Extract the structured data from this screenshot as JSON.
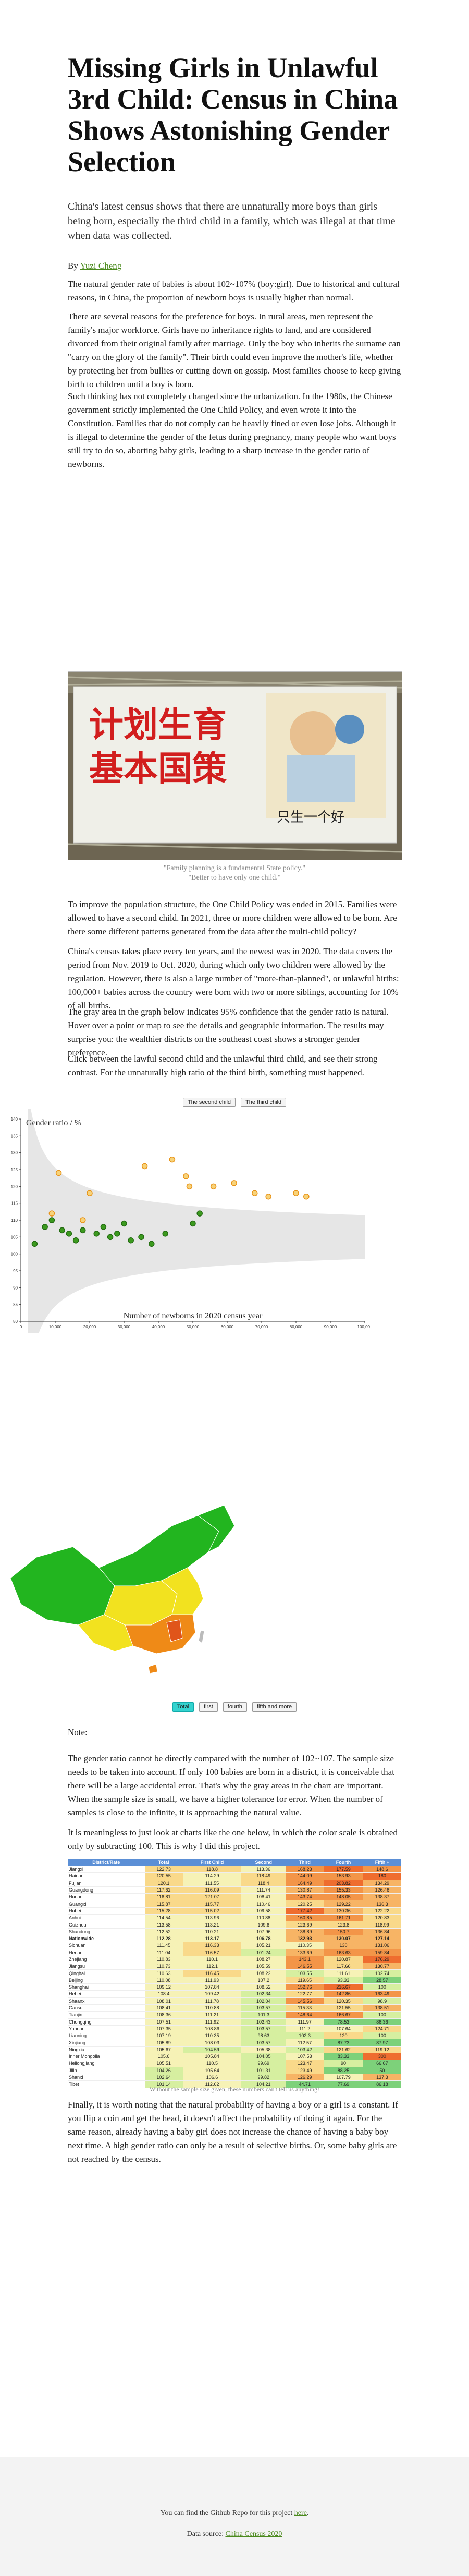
{
  "title": "Missing Girls in Unlawful 3rd Child: Census in China Shows Astonishing Gender Selection",
  "lead": "China's latest census shows that there are unnaturally more boys than girls being born, especially the third child in a family, which was illegal at that time when data was collected.",
  "byline": {
    "prefix": "By ",
    "author": "Yuzi Cheng"
  },
  "paragraphs": {
    "p1": "The natural gender rate of babies is about 102~107% (boy:girl). Due to historical and cultural reasons, in China, the proportion of newborn boys is usually higher than normal.",
    "p2": "There are several reasons for the preference for boys. In rural areas, men represent the family's major workforce. Girls have no inheritance rights to land, and are considered divorced from their original family after marriage. Only the boy who inherits the surname can \"carry on the glory of the family\". Their birth could even improve the mother's life, whether by protecting her from bullies or cutting down on gossip. Most families choose to keep giving birth to children until a boy is born.",
    "p3": "Such thinking has not completely changed since the urbanization. In the 1980s, the Chinese government strictly implemented the One Child Policy, and even wrote it into the Constitution. Families that do not comply can be heavily fined or even lose jobs. Although it is illegal to determine the gender of the fetus during pregnancy, many people who want boys still try to do so, aborting baby girls, leading to a sharp increase in the gender ratio of newborns.",
    "p4": "To improve the population structure, the One Child Policy was ended in 2015. Families were allowed to have a second child. In 2021, three or more children were allowed to be born. Are there some different patterns generated from the data after the multi-child policy?",
    "p5": "China's census takes place every ten years, and the newest was in 2020. The data covers the period from Nov. 2019 to Oct. 2020, during which only two children were allowed by the regulation. However, there is also a large number of \"more-than-planned\", or unlawful births: 100,000+ babies across the country were born with two or more siblings, accounting for 10% of all births.",
    "p6": "The gray area in the graph below indicates 95% confidence that the gender ratio is natural. Hover over a point or map to see the details and geographic information. The results may surprise you: the wealthier districts on the southeast coast shows a stronger gender preference.",
    "p7": "Click between the lawful second child and the unlawful third child, and see their strong contrast. For the unnaturally high ratio of the third birth, something must happened.",
    "p8": "The gender ratio cannot be directly compared with the number of 102~107. The sample size needs to be taken into account. If only 100 babies are born in a district, it is conceivable that there will be a large accidental error. That's why the gray areas in the chart are important. When the sample size is small, we have a higher tolerance for error. When the number of samples is close to the infinite, it is approaching the natural value.",
    "p9": "It is meaningless to just look at charts like the one below, in which the color scale is obtained only by subtracting 100. This is why I did this project.",
    "p10": "Finally, it is worth noting that the natural probability of having a boy or a girl is a constant. If you flip a coin and get the head, it doesn't affect the probability of doing it again. For the same reason, already having a baby girl does not increase the chance of having a baby boy next time. A high gender ratio can only be a result of selective births. Or, some baby girls are not reached by the census."
  },
  "photo": {
    "sign_big_chars_line1": "计划生育",
    "sign_big_chars_line2": "基本国策",
    "sign_small": "只生一个好",
    "caption_line1": "\"Family planning is a fundamental State policy.\"",
    "caption_line2": "\"Better to have only one child.\""
  },
  "scatter_toggle": {
    "second": "The second child",
    "third": "The third child",
    "selected": "third"
  },
  "map_note": "Note:",
  "map_buttons": {
    "total": "Total",
    "first": "first",
    "fourth": "fourth",
    "fifth": "fifth and more",
    "selected": "total"
  },
  "table": {
    "caption": "Without the sample size given, these numbers can't tell us anything!",
    "headers": [
      "District/Rate",
      "Total",
      "First Child",
      "Second",
      "Third",
      "Fourth",
      "Fifth +"
    ],
    "rows": [
      [
        "Jiangxi",
        "122.73",
        "118.8",
        "113.36",
        "168.23",
        "177.59",
        "148.6"
      ],
      [
        "Hainan",
        "120.55",
        "114.29",
        "118.49",
        "144.09",
        "153.93",
        "180"
      ],
      [
        "Fujian",
        "120.1",
        "111.55",
        "118.4",
        "164.49",
        "203.82",
        "134.29"
      ],
      [
        "Guangdong",
        "117.62",
        "116.09",
        "111.74",
        "130.87",
        "155.33",
        "126.46"
      ],
      [
        "Hunan",
        "116.81",
        "121.07",
        "108.41",
        "143.74",
        "148.05",
        "138.37"
      ],
      [
        "Guangxi",
        "115.87",
        "115.77",
        "110.46",
        "120.25",
        "129.22",
        "136.3"
      ],
      [
        "Hubei",
        "115.28",
        "115.02",
        "109.58",
        "177.42",
        "130.36",
        "122.22"
      ],
      [
        "Anhui",
        "114.54",
        "113.96",
        "110.88",
        "160.85",
        "161.71",
        "120.83"
      ],
      [
        "Guizhou",
        "113.58",
        "113.21",
        "109.6",
        "123.69",
        "123.8",
        "118.99"
      ],
      [
        "Shandong",
        "112.52",
        "110.21",
        "107.96",
        "138.89",
        "150.7",
        "136.84"
      ],
      [
        "Nationwide",
        "112.28",
        "113.17",
        "106.78",
        "132.93",
        "130.07",
        "127.14"
      ],
      [
        "Sichuan",
        "111.45",
        "116.33",
        "105.21",
        "110.35",
        "130",
        "131.06"
      ],
      [
        "Henan",
        "111.04",
        "116.57",
        "101.24",
        "133.69",
        "163.63",
        "159.84"
      ],
      [
        "Zhejiang",
        "110.83",
        "110.1",
        "108.27",
        "143.1",
        "120.87",
        "176.29"
      ],
      [
        "Jiangsu",
        "110.73",
        "112.1",
        "105.59",
        "146.55",
        "117.66",
        "130.77"
      ],
      [
        "Qinghai",
        "110.63",
        "116.45",
        "108.22",
        "103.55",
        "111.61",
        "102.74"
      ],
      [
        "Beijing",
        "110.08",
        "111.93",
        "107.2",
        "119.65",
        "93.33",
        "28.57"
      ],
      [
        "Shanghai",
        "109.12",
        "107.84",
        "108.52",
        "152.76",
        "216.67",
        "100"
      ],
      [
        "Hebei",
        "108.4",
        "109.42",
        "102.34",
        "122.77",
        "142.86",
        "163.49"
      ],
      [
        "Shaanxi",
        "108.01",
        "111.78",
        "102.04",
        "145.56",
        "120.35",
        "98.9"
      ],
      [
        "Gansu",
        "108.41",
        "110.88",
        "103.57",
        "115.33",
        "121.55",
        "138.51"
      ],
      [
        "Tianjin",
        "108.36",
        "111.21",
        "101.3",
        "148.64",
        "166.67",
        "100"
      ],
      [
        "Chongqing",
        "107.51",
        "111.92",
        "102.43",
        "111.97",
        "78.53",
        "86.36"
      ],
      [
        "Yunnan",
        "107.35",
        "108.86",
        "103.57",
        "111.2",
        "107.64",
        "124.71"
      ],
      [
        "Liaoning",
        "107.19",
        "110.35",
        "98.63",
        "102.3",
        "120",
        "100"
      ],
      [
        "Xinjiang",
        "105.89",
        "108.03",
        "103.57",
        "112.57",
        "87.73",
        "87.97"
      ],
      [
        "Ningxia",
        "105.67",
        "104.59",
        "105.38",
        "103.42",
        "121.62",
        "119.12"
      ],
      [
        "Inner Mongolia",
        "105.6",
        "105.84",
        "104.05",
        "107.53",
        "83.33",
        "300"
      ],
      [
        "Heilongjiang",
        "105.51",
        "110.5",
        "99.69",
        "123.47",
        "90",
        "66.67"
      ],
      [
        "Jilin",
        "104.26",
        "105.64",
        "101.31",
        "123.49",
        "88.25",
        "50"
      ],
      [
        "Shanxi",
        "102.64",
        "106.6",
        "99.82",
        "126.29",
        "107.79",
        "137.3"
      ],
      [
        "Tibet",
        "101.14",
        "112.62",
        "104.21",
        "44.71",
        "77.69",
        "86.18"
      ]
    ]
  },
  "footer": {
    "code_prefix": "You can find the Github Repo for this project ",
    "code_link": "here",
    "code_suffix": ".",
    "source_prefix": "Data source: ",
    "source_link": "China Census 2020"
  },
  "colors": {
    "accent_link": "#4a8a1c",
    "lawful_point": "#3c9a1f",
    "unlawful_point": "#e89216",
    "band": "#e6e6e6",
    "map_green": "#22b51f",
    "map_yellow": "#f2e21f",
    "map_orange": "#ef8a17"
  },
  "chart_data": {
    "type": "scatter",
    "title": "",
    "xlabel": "Number of newborns in 2020 census year",
    "ylabel": "Gender ratio / %",
    "xlim": [
      0,
      100000
    ],
    "ylim": [
      80,
      140
    ],
    "xticks": [
      0,
      10000,
      20000,
      30000,
      40000,
      50000,
      60000,
      70000,
      80000,
      90000,
      100000
    ],
    "yticks": [
      80,
      85,
      90,
      95,
      100,
      105,
      110,
      115,
      120,
      125,
      130,
      135,
      140
    ],
    "band": "95% confidence of natural ratio",
    "series": [
      {
        "values_x": [
          11000,
          36000,
          44000,
          18000,
          20000,
          48000,
          49000,
          68000,
          72000,
          80000,
          83000,
          62000,
          56000,
          9000
        ],
        "values_y": [
          124,
          126,
          128,
          110,
          118,
          123,
          120,
          118,
          117,
          118,
          117,
          121,
          120,
          112
        ]
      },
      {
        "values_x": [
          4000,
          7000,
          9000,
          12000,
          14000,
          16000,
          18000,
          22000,
          24000,
          26000,
          28000,
          30000,
          32000,
          35000,
          38000,
          42000,
          50000,
          52000
        ],
        "values_y": [
          103,
          108,
          110,
          107,
          106,
          104,
          107,
          106,
          108,
          105,
          106,
          109,
          104,
          105,
          103,
          106,
          109,
          112
        ]
      }
    ]
  }
}
